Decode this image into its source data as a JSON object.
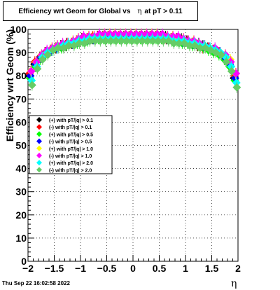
{
  "title": {
    "prefix": "Efficiency wrt Geom for Global vs",
    "eta": "η",
    "suffix": "at pT > 0.11"
  },
  "footer": {
    "timestamp": "Thu Sep 22 16:02:58 2022"
  },
  "chart_data": {
    "type": "scatter",
    "title": "Efficiency wrt Geom for Global vs η at pT > 0.11",
    "xlabel": "η",
    "ylabel": "Efficiency wrt Geom (%)",
    "xlim": [
      -2,
      2
    ],
    "ylim": [
      0,
      100
    ],
    "x_ticks": [
      -2,
      -1.5,
      -1,
      -0.5,
      0,
      0.5,
      1,
      1.5,
      2
    ],
    "x_tick_labels": [
      "−2",
      "−1.5",
      "−1",
      "−0.5",
      "0",
      "0.5",
      "1",
      "1.5",
      "2"
    ],
    "y_ticks": [
      0,
      10,
      20,
      30,
      40,
      50,
      60,
      70,
      80,
      90,
      100
    ],
    "y_tick_labels": [
      "0",
      "10",
      "20",
      "30",
      "40",
      "50",
      "60",
      "70",
      "80",
      "90",
      "100"
    ],
    "grid": true,
    "legend_position": "left-middle",
    "colors": {
      "black": "#000000",
      "red": "#ff0000",
      "green": "#00ff00",
      "blue": "#0000ff",
      "yellow": "#ffff00",
      "magenta": "#ff00ff",
      "cyan": "#00ffff",
      "lightgreen": "#66cc66"
    },
    "x": [
      -1.95,
      -1.85,
      -1.75,
      -1.65,
      -1.55,
      -1.45,
      -1.35,
      -1.25,
      -1.15,
      -1.05,
      -0.95,
      -0.85,
      -0.75,
      -0.65,
      -0.55,
      -0.45,
      -0.35,
      -0.25,
      -0.15,
      -0.05,
      0.05,
      0.15,
      0.25,
      0.35,
      0.45,
      0.55,
      0.65,
      0.75,
      0.85,
      0.95,
      1.05,
      1.15,
      1.25,
      1.35,
      1.45,
      1.55,
      1.65,
      1.75,
      1.85,
      1.95
    ],
    "series": [
      {
        "name": "(+) with pT/|q| > 0.1",
        "color": "#000000",
        "values": [
          80,
          85,
          88,
          90,
          91,
          92,
          93,
          93,
          94,
          95,
          96,
          96,
          96,
          97,
          97,
          97,
          97,
          97,
          97,
          97,
          97,
          97,
          97,
          97,
          97,
          97,
          97,
          96,
          96,
          96,
          95,
          94,
          93,
          93,
          92,
          91,
          90,
          88,
          85,
          79
        ]
      },
      {
        "name": "(-) with pT/|q| > 0.1",
        "color": "#ff0000",
        "values": [
          81,
          86,
          88,
          90,
          91,
          92,
          93,
          94,
          94,
          95,
          96,
          96,
          97,
          97,
          97,
          97,
          97,
          97,
          97,
          97,
          97,
          97,
          97,
          97,
          97,
          97,
          96,
          96,
          96,
          95,
          95,
          94,
          93,
          92,
          92,
          91,
          90,
          88,
          86,
          80
        ]
      },
      {
        "name": "(+) with pT/|q| > 0.5",
        "color": "#00ff00",
        "values": [
          79,
          84,
          87,
          89,
          91,
          92,
          92,
          93,
          94,
          94,
          95,
          95,
          96,
          96,
          96,
          96,
          96,
          96,
          96,
          96,
          96,
          96,
          96,
          96,
          96,
          96,
          96,
          95,
          95,
          94,
          94,
          93,
          93,
          92,
          91,
          90,
          89,
          87,
          84,
          78
        ]
      },
      {
        "name": "(-) with pT/|q| > 0.5",
        "color": "#0000ff",
        "values": [
          80,
          85,
          88,
          90,
          91,
          92,
          93,
          94,
          94,
          95,
          96,
          96,
          96,
          97,
          97,
          97,
          97,
          97,
          97,
          97,
          97,
          97,
          97,
          97,
          97,
          97,
          96,
          96,
          96,
          95,
          95,
          94,
          94,
          93,
          92,
          91,
          90,
          88,
          85,
          79
        ]
      },
      {
        "name": "(+) with pT/|q| > 1.0",
        "color": "#ffff00",
        "values": [
          82,
          86,
          89,
          90,
          92,
          93,
          93,
          94,
          95,
          96,
          96,
          97,
          97,
          97,
          98,
          98,
          98,
          98,
          98,
          98,
          98,
          98,
          98,
          98,
          98,
          97,
          97,
          97,
          96,
          96,
          95,
          95,
          94,
          93,
          92,
          91,
          90,
          89,
          87,
          81
        ]
      },
      {
        "name": "(-) with pT/|q| > 1.0",
        "color": "#ff00ff",
        "values": [
          82,
          86,
          89,
          91,
          92,
          93,
          94,
          94,
          95,
          96,
          97,
          97,
          97,
          98,
          98,
          98,
          98,
          98,
          98,
          98,
          98,
          98,
          98,
          98,
          98,
          98,
          97,
          97,
          97,
          96,
          95,
          95,
          94,
          93,
          92,
          92,
          90,
          89,
          86,
          81
        ]
      },
      {
        "name": "(+) with pT/|q| > 2.0",
        "color": "#00ffff",
        "values": [
          78,
          84,
          88,
          90,
          91,
          92,
          93,
          94,
          94,
          95,
          95,
          96,
          96,
          96,
          96,
          96,
          96,
          96,
          96,
          96,
          96,
          96,
          96,
          96,
          96,
          96,
          96,
          95,
          95,
          95,
          94,
          94,
          93,
          93,
          92,
          91,
          90,
          88,
          84,
          77
        ]
      },
      {
        "name": "(-) with pT/|q| > 2.0",
        "color": "#66cc66",
        "values": [
          76,
          83,
          87,
          89,
          91,
          92,
          92,
          93,
          93,
          94,
          94,
          95,
          95,
          95,
          95,
          95,
          95,
          95,
          95,
          95,
          95,
          95,
          95,
          95,
          95,
          95,
          95,
          94,
          94,
          94,
          93,
          93,
          92,
          92,
          91,
          90,
          89,
          86,
          82,
          75
        ]
      }
    ]
  }
}
